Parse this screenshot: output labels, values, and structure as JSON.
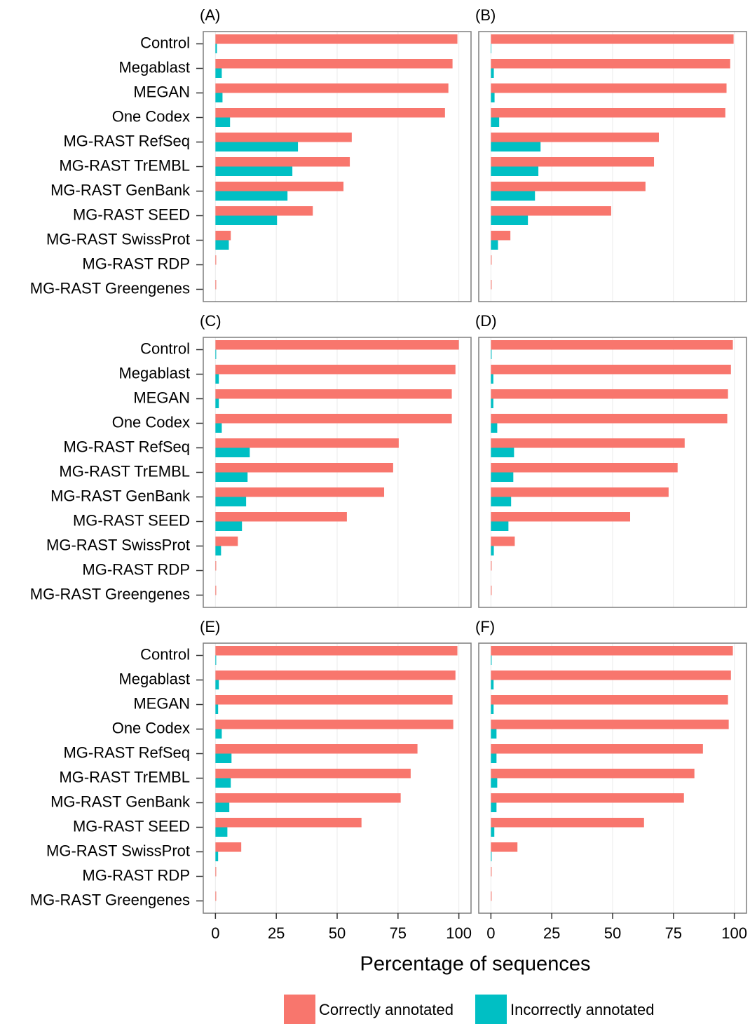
{
  "chart_data": [
    {
      "type": "bar",
      "orientation": "horizontal",
      "title": "(A)",
      "categories": [
        "Control",
        "Megablast",
        "MEGAN",
        "One Codex",
        "MG-RAST RefSeq",
        "MG-RAST TrEMBL",
        "MG-RAST GenBank",
        "MG-RAST SEED",
        "MG-RAST SwissProt",
        "MG-RAST RDP",
        "MG-RAST Greengenes"
      ],
      "series": [
        {
          "name": "Correctly annotated",
          "color": "#F8766D",
          "values": [
            99.4,
            97.4,
            95.7,
            94.3,
            56,
            55.2,
            52.6,
            40,
            6.3,
            0.3,
            0.3
          ]
        },
        {
          "name": "Incorrectly annotated",
          "color": "#00BFC4",
          "values": [
            0.6,
            2.6,
            2.9,
            6,
            33.9,
            31.6,
            29.6,
            25.3,
            5.5,
            0,
            0
          ]
        }
      ],
      "xlim": [
        -5,
        105
      ],
      "xticks": [
        0,
        25,
        50,
        75,
        100
      ],
      "grid": true
    },
    {
      "type": "bar",
      "orientation": "horizontal",
      "title": "(B)",
      "series": [
        {
          "color": "#F8766D",
          "values": [
            99.7,
            98.3,
            96.8,
            96.3,
            69,
            67,
            63.5,
            49.4,
            8,
            0.3,
            0.3
          ]
        },
        {
          "color": "#00BFC4",
          "values": [
            0.2,
            1.2,
            1.5,
            3.4,
            20.4,
            19.5,
            18.1,
            15.2,
            2.9,
            0,
            0
          ]
        }
      ],
      "xlim": [
        -5,
        105
      ],
      "xticks": [
        0,
        25,
        50,
        75,
        100
      ],
      "grid": true
    },
    {
      "type": "bar",
      "orientation": "horizontal",
      "title": "(C)",
      "categories": [
        "Control",
        "Megablast",
        "MEGAN",
        "One Codex",
        "MG-RAST RefSeq",
        "MG-RAST TrEMBL",
        "MG-RAST GenBank",
        "MG-RAST SEED",
        "MG-RAST SwissProt",
        "MG-RAST RDP",
        "MG-RAST Greengenes"
      ],
      "series": [
        {
          "color": "#F8766D",
          "values": [
            100,
            98.6,
            97.1,
            97.1,
            75.3,
            73,
            69.3,
            54,
            9.2,
            0.3,
            0.3
          ]
        },
        {
          "color": "#00BFC4",
          "values": [
            0.3,
            1.4,
            1.4,
            2.6,
            14.1,
            13.2,
            12.6,
            10.9,
            2.3,
            0,
            0
          ]
        }
      ],
      "xlim": [
        -5,
        105
      ],
      "xticks": [
        0,
        25,
        50,
        75,
        100
      ],
      "grid": true
    },
    {
      "type": "bar",
      "orientation": "horizontal",
      "title": "(D)",
      "series": [
        {
          "color": "#F8766D",
          "values": [
            99.4,
            98.6,
            97.4,
            97.1,
            79.6,
            76.7,
            73,
            57.2,
            9.8,
            0.3,
            0.3
          ]
        },
        {
          "color": "#00BFC4",
          "values": [
            0.3,
            1,
            1,
            2.6,
            9.5,
            9.2,
            8.3,
            7.2,
            1.2,
            0,
            0
          ]
        }
      ],
      "xlim": [
        -5,
        105
      ],
      "xticks": [
        0,
        25,
        50,
        75,
        100
      ],
      "grid": true
    },
    {
      "type": "bar",
      "orientation": "horizontal",
      "title": "(E)",
      "categories": [
        "Control",
        "Megablast",
        "MEGAN",
        "One Codex",
        "MG-RAST RefSeq",
        "MG-RAST TrEMBL",
        "MG-RAST GenBank",
        "MG-RAST SEED",
        "MG-RAST SwissProt",
        "MG-RAST RDP",
        "MG-RAST Greengenes"
      ],
      "series": [
        {
          "color": "#F8766D",
          "values": [
            99.4,
            98.6,
            97.4,
            97.7,
            83,
            80.2,
            76.1,
            60,
            10.6,
            0.3,
            0.3
          ]
        },
        {
          "color": "#00BFC4",
          "values": [
            0.3,
            1.4,
            1.1,
            2.6,
            6.6,
            6.3,
            5.7,
            4.9,
            1.1,
            0,
            0
          ]
        }
      ],
      "xlim": [
        -5,
        105
      ],
      "xticks": [
        0,
        25,
        50,
        75,
        100
      ],
      "grid": true
    },
    {
      "type": "bar",
      "orientation": "horizontal",
      "title": "(F)",
      "series": [
        {
          "color": "#F8766D",
          "values": [
            99.4,
            98.6,
            97.4,
            97.7,
            87.1,
            83.6,
            79.3,
            62.9,
            10.9,
            0.3,
            0.3
          ]
        },
        {
          "color": "#00BFC4",
          "values": [
            0.3,
            1.1,
            1.1,
            2.3,
            2.3,
            2.6,
            2.3,
            1.4,
            0.3,
            0,
            0
          ]
        }
      ],
      "xlim": [
        -5,
        105
      ],
      "xticks": [
        0,
        25,
        50,
        75,
        100
      ],
      "grid": true
    }
  ],
  "x_label": "Percentage of sequences"
}
